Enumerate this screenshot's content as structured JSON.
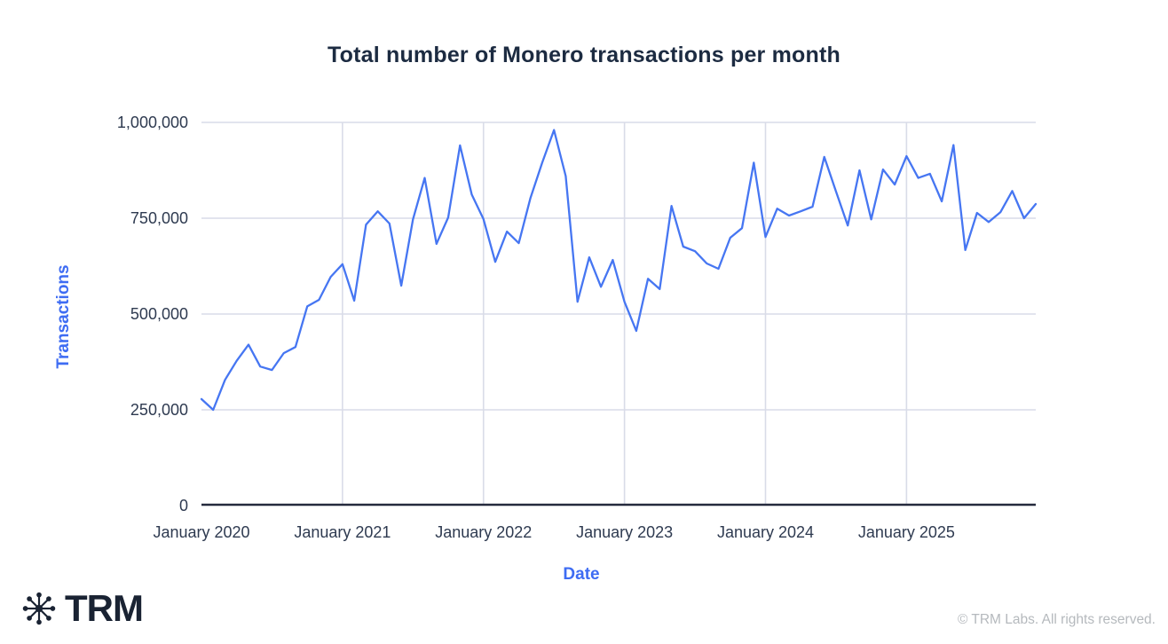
{
  "title": "Total number of Monero transactions per month",
  "y_axis": {
    "label": "Transactions"
  },
  "x_axis": {
    "label": "Date"
  },
  "footer": {
    "logo_icon": "network-asterisk-icon",
    "logo_text": "TRM",
    "copyright": "© TRM Labs. All rights reserved."
  },
  "colors": {
    "line": "#4676f2",
    "axis_title": "#3e6cf3",
    "grid": "#d9dce8",
    "axis_line": "#252a3d",
    "title_text": "#1c2b41",
    "tick_text": "#2e3a50",
    "logo": "#1a2333",
    "copyright_text": "#b5b9bd"
  },
  "chart_data": {
    "type": "line",
    "title": "Total number of Monero transactions per month",
    "xlabel": "Date",
    "ylabel": "Transactions",
    "ylim": [
      0,
      1000000
    ],
    "grid": true,
    "legend": false,
    "line_color": "#4676f2",
    "y_ticks": [
      {
        "value": 0,
        "label": "0"
      },
      {
        "value": 250000,
        "label": "250,000"
      },
      {
        "value": 500000,
        "label": "500,000"
      },
      {
        "value": 750000,
        "label": "750,000"
      },
      {
        "value": 1000000,
        "label": "1,000,000"
      }
    ],
    "x_ticks": [
      {
        "month_index": 0,
        "label": "January 2020"
      },
      {
        "month_index": 12,
        "label": "January 2021"
      },
      {
        "month_index": 24,
        "label": "January 2022"
      },
      {
        "month_index": 36,
        "label": "January 2023"
      },
      {
        "month_index": 48,
        "label": "January 2024"
      },
      {
        "month_index": 60,
        "label": "January 2025"
      }
    ],
    "x": [
      "2020-01",
      "2020-02",
      "2020-03",
      "2020-04",
      "2020-05",
      "2020-06",
      "2020-07",
      "2020-08",
      "2020-09",
      "2020-10",
      "2020-11",
      "2020-12",
      "2021-01",
      "2021-02",
      "2021-03",
      "2021-04",
      "2021-05",
      "2021-06",
      "2021-07",
      "2021-08",
      "2021-09",
      "2021-10",
      "2021-11",
      "2021-12",
      "2022-01",
      "2022-02",
      "2022-03",
      "2022-04",
      "2022-05",
      "2022-06",
      "2022-07",
      "2022-08",
      "2022-09",
      "2022-10",
      "2022-11",
      "2022-12",
      "2023-01",
      "2023-02",
      "2023-03",
      "2023-04",
      "2023-05",
      "2023-06",
      "2023-07",
      "2023-08",
      "2023-09",
      "2023-10",
      "2023-11",
      "2023-12",
      "2024-01",
      "2024-02",
      "2024-03",
      "2024-04",
      "2024-05",
      "2024-06",
      "2024-07",
      "2024-08",
      "2024-09",
      "2024-10",
      "2024-11",
      "2024-12",
      "2025-01",
      "2025-02",
      "2025-03",
      "2025-04",
      "2025-05",
      "2025-06",
      "2025-07",
      "2025-08",
      "2025-09",
      "2025-10",
      "2025-11",
      "2025-12"
    ],
    "values": [
      278000,
      250000,
      328000,
      378000,
      420000,
      363000,
      354000,
      398000,
      414000,
      520000,
      537000,
      597000,
      630000,
      535000,
      733000,
      768000,
      736000,
      574000,
      747000,
      855000,
      683000,
      752000,
      940000,
      812000,
      748000,
      636000,
      715000,
      685000,
      803000,
      895000,
      980000,
      860000,
      532000,
      648000,
      571000,
      641000,
      532000,
      456000,
      592000,
      565000,
      782000,
      676000,
      664000,
      632000,
      618000,
      699000,
      724000,
      895000,
      701000,
      775000,
      757000,
      768000,
      780000,
      910000,
      820000,
      731000,
      875000,
      747000,
      877000,
      838000,
      912000,
      855000,
      866000,
      794000,
      941000,
      667000,
      764000,
      740000,
      766000,
      821000,
      750000,
      787000
    ]
  }
}
